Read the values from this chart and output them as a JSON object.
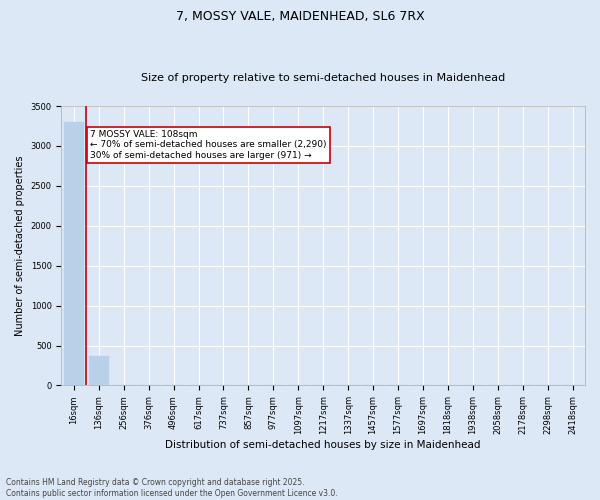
{
  "title": "7, MOSSY VALE, MAIDENHEAD, SL6 7RX",
  "subtitle": "Size of property relative to semi-detached houses in Maidenhead",
  "xlabel": "Distribution of semi-detached houses by size in Maidenhead",
  "ylabel": "Number of semi-detached properties",
  "categories": [
    "16sqm",
    "136sqm",
    "256sqm",
    "376sqm",
    "496sqm",
    "617sqm",
    "737sqm",
    "857sqm",
    "977sqm",
    "1097sqm",
    "1217sqm",
    "1337sqm",
    "1457sqm",
    "1577sqm",
    "1697sqm",
    "1818sqm",
    "1938sqm",
    "2058sqm",
    "2178sqm",
    "2298sqm",
    "2418sqm"
  ],
  "values": [
    3300,
    370,
    0,
    0,
    0,
    0,
    0,
    0,
    0,
    0,
    0,
    0,
    0,
    0,
    0,
    0,
    0,
    0,
    0,
    0,
    0
  ],
  "bar_color": "#b8d0e8",
  "bar_edgecolor": "#b8d0e8",
  "background_color": "#dce8f5",
  "grid_color": "#ffffff",
  "vline_x": 0.5,
  "vline_color": "#cc0000",
  "annotation_text": "7 MOSSY VALE: 108sqm\n← 70% of semi-detached houses are smaller (2,290)\n30% of semi-detached houses are larger (971) →",
  "annotation_box_color": "#cc0000",
  "annotation_facecolor": "#ffffff",
  "ylim": [
    0,
    3500
  ],
  "yticks": [
    0,
    500,
    1000,
    1500,
    2000,
    2500,
    3000,
    3500
  ],
  "footer": "Contains HM Land Registry data © Crown copyright and database right 2025.\nContains public sector information licensed under the Open Government Licence v3.0.",
  "title_fontsize": 9,
  "subtitle_fontsize": 8,
  "xlabel_fontsize": 7.5,
  "ylabel_fontsize": 7,
  "tick_fontsize": 6,
  "annotation_fontsize": 6.5,
  "footer_fontsize": 5.5
}
